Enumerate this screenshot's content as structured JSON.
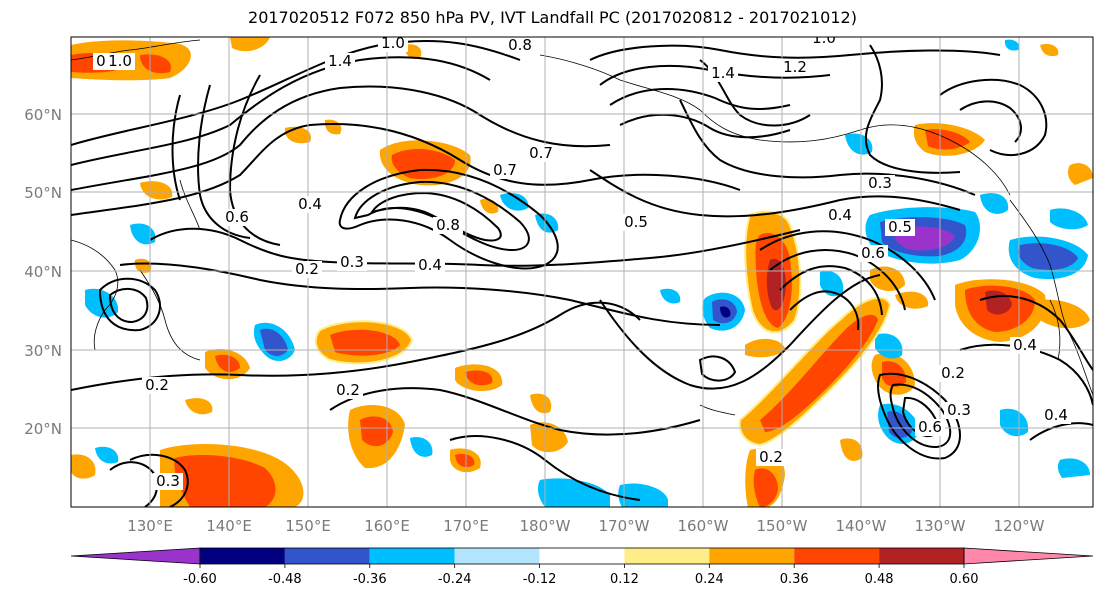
{
  "title": "2017020512 F072 850 hPa PV, IVT Landfall PC (2017020812 - 2017021012)",
  "map": {
    "lat_labels": [
      "60°N",
      "50°N",
      "40°N",
      "30°N",
      "20°N"
    ],
    "lon_labels": [
      "130°E",
      "140°E",
      "150°E",
      "160°E",
      "170°E",
      "180°W",
      "170°W",
      "160°W",
      "150°W",
      "140°W",
      "130°W",
      "120°W"
    ]
  },
  "colorbar": {
    "colors": [
      "#9933cc",
      "#000080",
      "#3355cc",
      "#00bfff",
      "#b3e5ff",
      "#ffffff",
      "#ffee88",
      "#ffa500",
      "#ff4500",
      "#b22222",
      "#ff88aa"
    ],
    "tick_labels": [
      "-0.60",
      "-0.48",
      "-0.36",
      "-0.24",
      "-0.12",
      "0.12",
      "0.24",
      "0.36",
      "0.48",
      "0.60"
    ]
  },
  "contour_labels": [
    {
      "text": "0.8"
    },
    {
      "text": "1.0"
    },
    {
      "text": "1.4"
    },
    {
      "text": "1.0"
    },
    {
      "text": "0.8"
    },
    {
      "text": "1.0"
    },
    {
      "text": "1.4"
    },
    {
      "text": "1.2"
    },
    {
      "text": "0.7"
    },
    {
      "text": "0.7"
    },
    {
      "text": "0.3"
    },
    {
      "text": "0.5"
    },
    {
      "text": "0.4"
    },
    {
      "text": "0.5"
    },
    {
      "text": "0.6"
    },
    {
      "text": "0.4"
    },
    {
      "text": "0.6"
    },
    {
      "text": "0.8"
    },
    {
      "text": "0.3"
    },
    {
      "text": "0.4"
    },
    {
      "text": "0.2"
    },
    {
      "text": "0.2"
    },
    {
      "text": "0.2"
    },
    {
      "text": "0.2"
    },
    {
      "text": "0.2"
    },
    {
      "text": "0.6"
    },
    {
      "text": "0.3"
    },
    {
      "text": "0.4"
    },
    {
      "text": "0.4"
    },
    {
      "text": "0.3"
    }
  ]
}
